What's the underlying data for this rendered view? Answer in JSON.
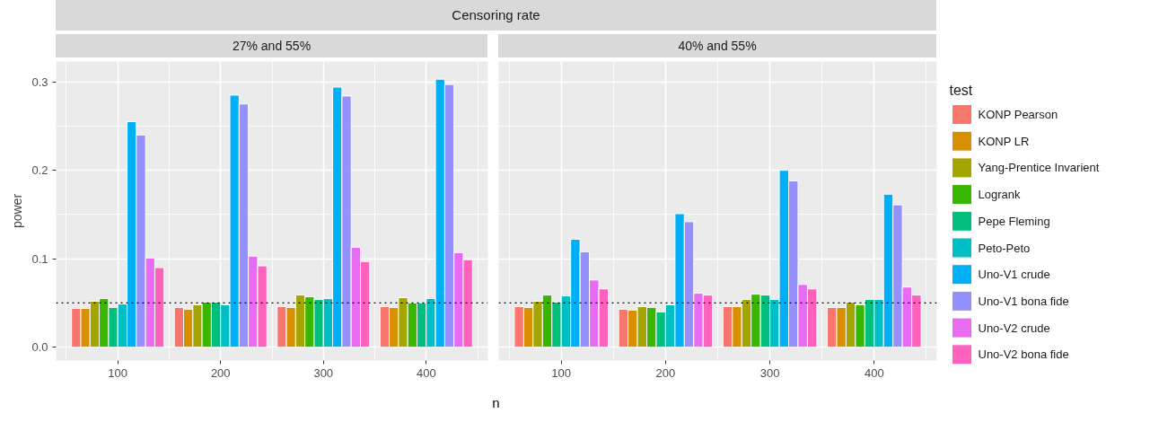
{
  "chart_data": [
    {
      "type": "bar",
      "title": "27% and 55%",
      "annotations": [
        "Censoring rate"
      ],
      "xlabel": "n",
      "ylabel": "power",
      "categories": [
        "100",
        "200",
        "300",
        "400"
      ],
      "ylim": [
        -0.015,
        0.323
      ],
      "yticks": [
        {
          "value": 0,
          "label": "0.0"
        },
        0.1,
        0.2,
        0.3
      ],
      "grid": true,
      "ref_lines": [
        {
          "axis": "y",
          "value": 0.05,
          "color": "#000000",
          "line_style": "dotted"
        }
      ],
      "series": [
        {
          "color": "#f8766d",
          "values": [
            0.044,
            0.045,
            0.046,
            0.046
          ]
        },
        {
          "color": "#d89000",
          "values": [
            0.044,
            0.043,
            0.045,
            0.045
          ]
        },
        {
          "color": "#a3a500",
          "values": [
            0.052,
            0.048,
            0.059,
            0.056
          ]
        },
        {
          "color": "#39b600",
          "values": [
            0.055,
            0.051,
            0.057,
            0.05
          ]
        },
        {
          "color": "#00bf7d",
          "values": [
            0.045,
            0.051,
            0.054,
            0.05
          ]
        },
        {
          "color": "#00bfc4",
          "values": [
            0.049,
            0.048,
            0.055,
            0.055
          ]
        },
        {
          "color": "#00b0f6",
          "values": [
            0.255,
            0.285,
            0.294,
            0.303
          ]
        },
        {
          "color": "#9590ff",
          "values": [
            0.24,
            0.275,
            0.284,
            0.297
          ]
        },
        {
          "color": "#e76bf3",
          "values": [
            0.101,
            0.103,
            0.113,
            0.107
          ]
        },
        {
          "color": "#ff62bc",
          "values": [
            0.09,
            0.092,
            0.097,
            0.099
          ]
        }
      ]
    },
    {
      "type": "bar",
      "title": "40% and 55%",
      "categories": [
        "100",
        "200",
        "300",
        "400"
      ],
      "ylim": [
        -0.015,
        0.323
      ],
      "yticks": [
        0,
        0.1,
        0.2,
        0.3
      ],
      "grid": true,
      "tick_labels": "x",
      "legend": "right",
      "legend_title": "test",
      "ref_lines": [
        {
          "axis": "y",
          "value": 0.05,
          "color": "#000000",
          "line_style": "dotted"
        }
      ],
      "series": [
        {
          "name": "KONP Pearson",
          "color": "#f8766d",
          "values": [
            0.046,
            0.043,
            0.046,
            0.045
          ]
        },
        {
          "name": "KONP LR",
          "color": "#d89000",
          "values": [
            0.045,
            0.042,
            0.046,
            0.045
          ]
        },
        {
          "name": "Yang-Prentice Invarient",
          "color": "#a3a500",
          "values": [
            0.052,
            0.046,
            0.054,
            0.051
          ]
        },
        {
          "name": "Logrank",
          "color": "#39b600",
          "values": [
            0.059,
            0.045,
            0.06,
            0.048
          ]
        },
        {
          "name": "Pepe Fleming",
          "color": "#00bf7d",
          "values": [
            0.051,
            0.04,
            0.059,
            0.054
          ]
        },
        {
          "name": "Peto-Peto",
          "color": "#00bfc4",
          "values": [
            0.058,
            0.048,
            0.054,
            0.054
          ]
        },
        {
          "name": "Uno-V1 crude",
          "color": "#00b0f6",
          "values": [
            0.122,
            0.151,
            0.2,
            0.173
          ]
        },
        {
          "name": "Uno-V1 bona fide",
          "color": "#9590ff",
          "values": [
            0.108,
            0.142,
            0.188,
            0.161
          ]
        },
        {
          "name": "Uno-V2 crude",
          "color": "#e76bf3",
          "values": [
            0.076,
            0.061,
            0.071,
            0.068
          ]
        },
        {
          "name": "Uno-V2 bona fide",
          "color": "#ff62bc",
          "values": [
            0.066,
            0.059,
            0.066,
            0.059
          ]
        }
      ]
    }
  ]
}
